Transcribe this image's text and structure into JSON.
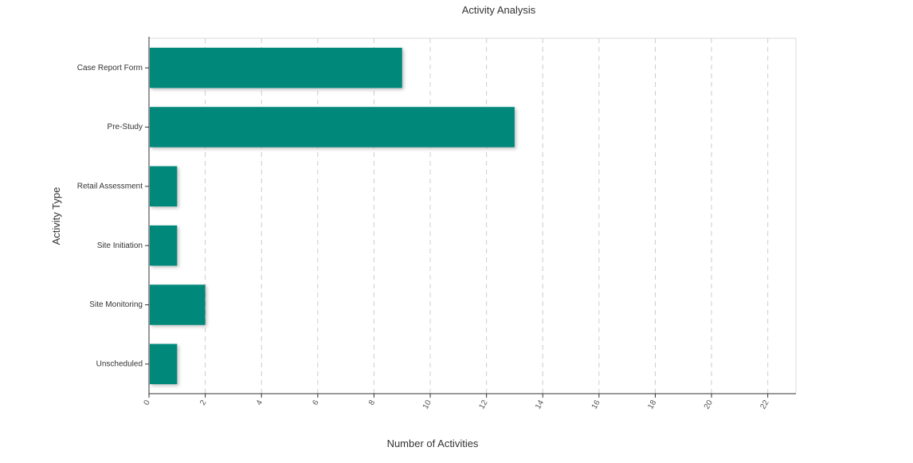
{
  "chart_data": {
    "type": "bar",
    "orientation": "horizontal",
    "title": "Activity Analysis",
    "xlabel": "Number of Activities",
    "ylabel": "Activity Type",
    "categories": [
      "Case Report Form",
      "Pre-Study",
      "Retail Assessment",
      "Site Initiation",
      "Site Monitoring",
      "Unscheduled"
    ],
    "values": [
      9,
      13,
      1,
      1,
      2,
      1
    ],
    "xlim": [
      0,
      23
    ],
    "xticks": [
      0,
      2,
      4,
      6,
      8,
      10,
      12,
      14,
      16,
      18,
      20,
      22
    ],
    "grid": true,
    "legend": "none",
    "bar_color": "#00897b"
  }
}
